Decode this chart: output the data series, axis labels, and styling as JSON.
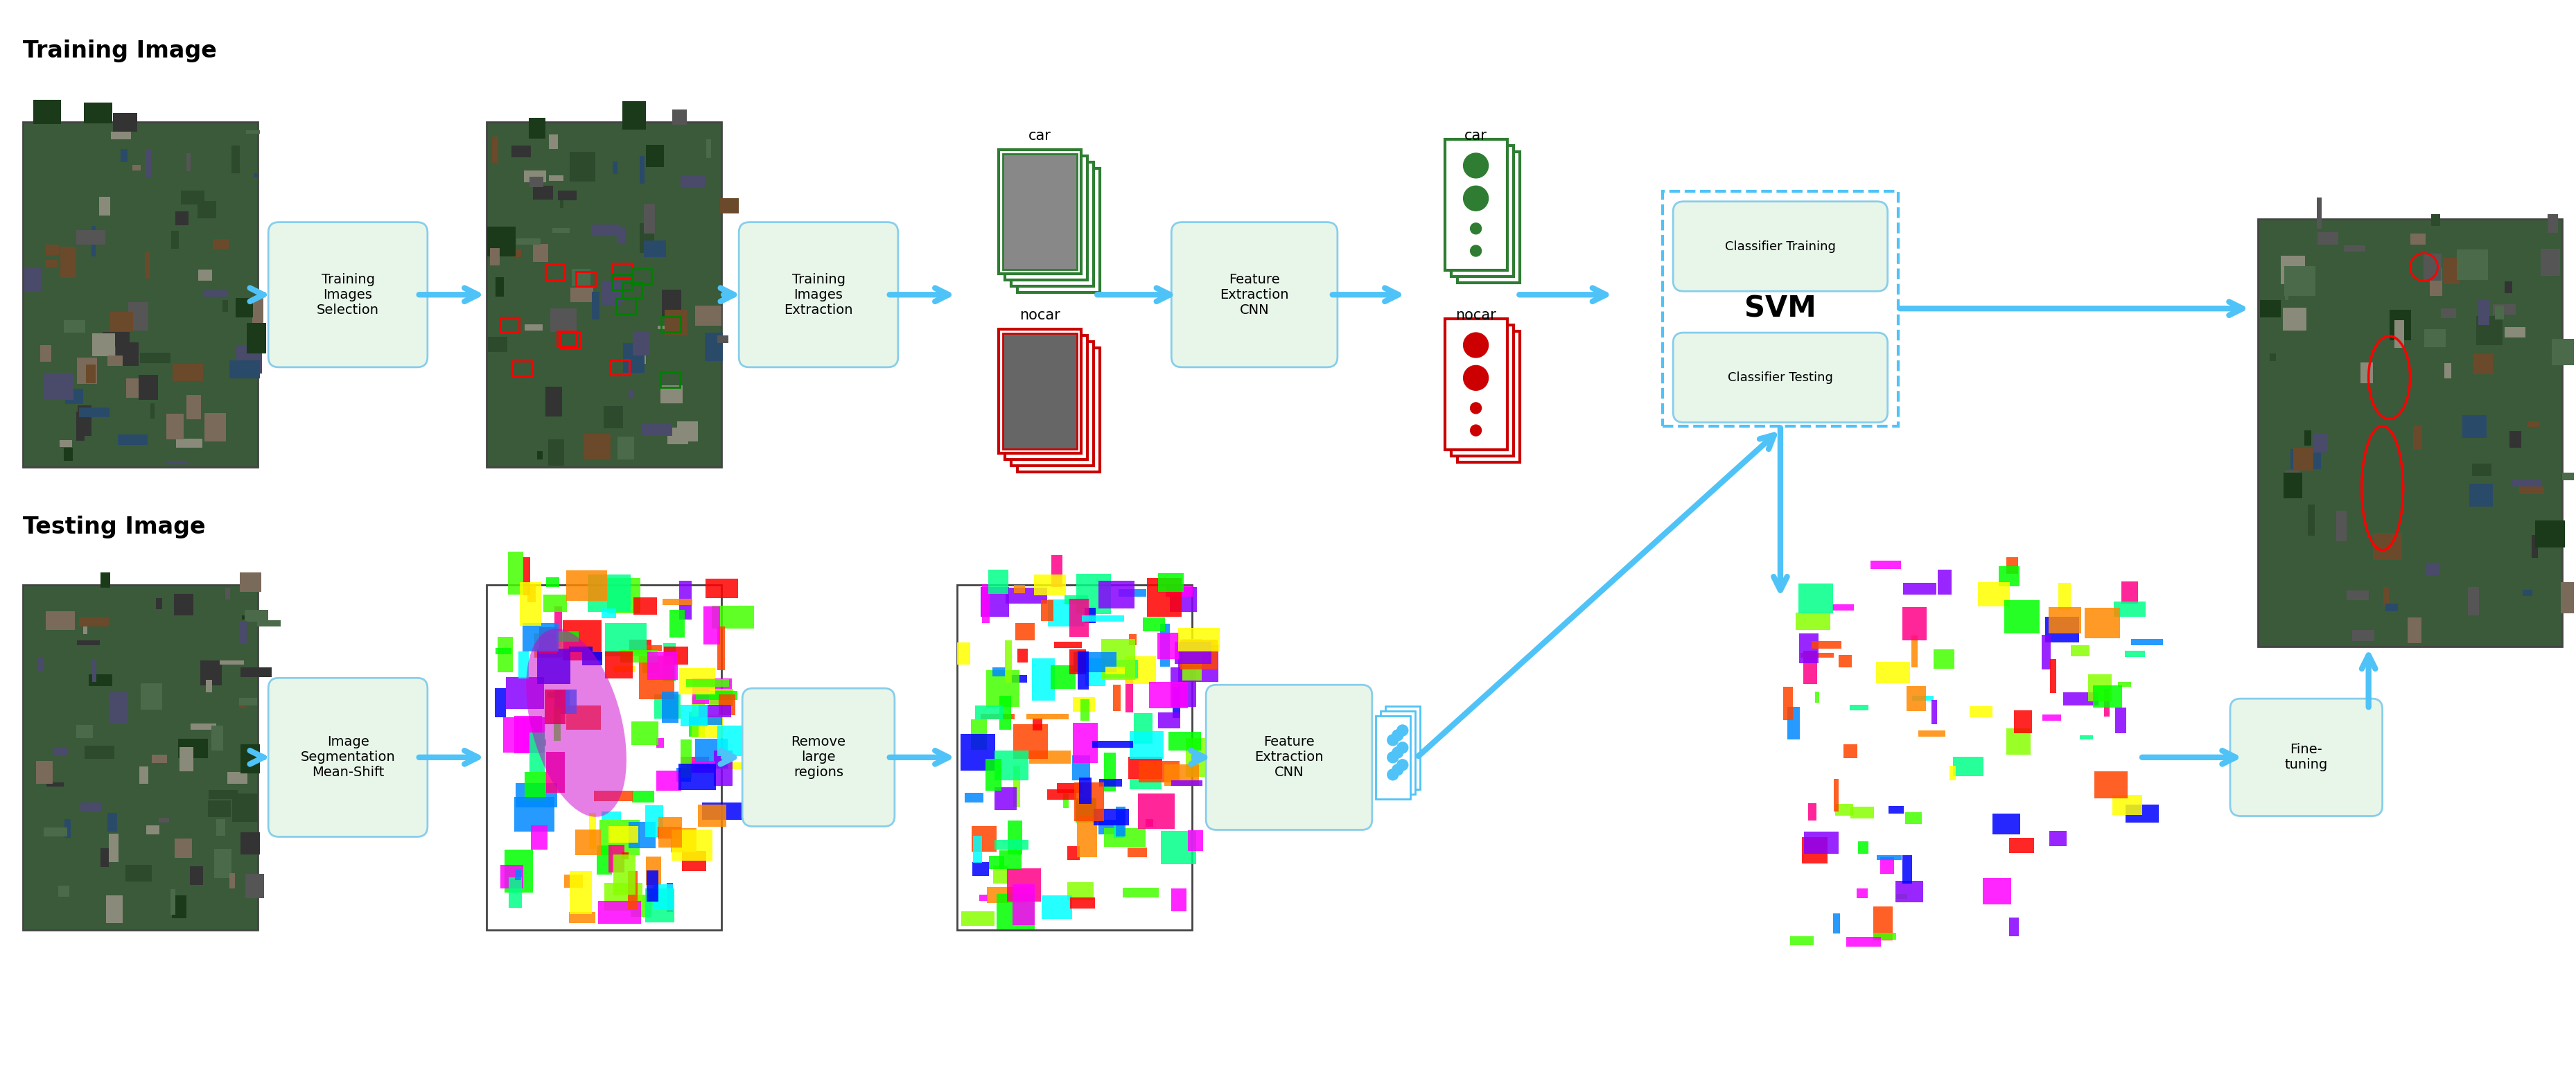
{
  "bg_color": "#ffffff",
  "training_label": "Training Image",
  "testing_label": "Testing Image",
  "box_bg": "#e8f5e9",
  "box_border": "#87ceeb",
  "arrow_color": "#4fc3f7",
  "green_color": "#2e7d32",
  "red_color": "#cc0000",
  "car_label": "car",
  "nocar_label": "nocar",
  "classifier_training": "Classifier Training",
  "classifier_testing": "Classifier Testing",
  "svm_label": "SVM",
  "feature_extraction": "Feature\nExtraction\nCNN",
  "training_images_selection": "Training\nImages\nSelection",
  "training_images_extraction": "Training\nImages\nExtraction",
  "image_segmentation": "Image\nSegmentation\nMean-Shift",
  "remove_large": "Remove\nlarge\nregions",
  "feature_extraction_cnn2": "Feature\nExtraction\nCNN",
  "fine_tuning": "Fine-\ntuning",
  "colors_seg": [
    "#ff00ff",
    "#00ffff",
    "#ff8800",
    "#00ff00",
    "#ff0000",
    "#0000ff",
    "#ffff00",
    "#8800ff",
    "#00ff88",
    "#ff0088",
    "#88ff00",
    "#0088ff",
    "#ff4400",
    "#44ff00"
  ]
}
